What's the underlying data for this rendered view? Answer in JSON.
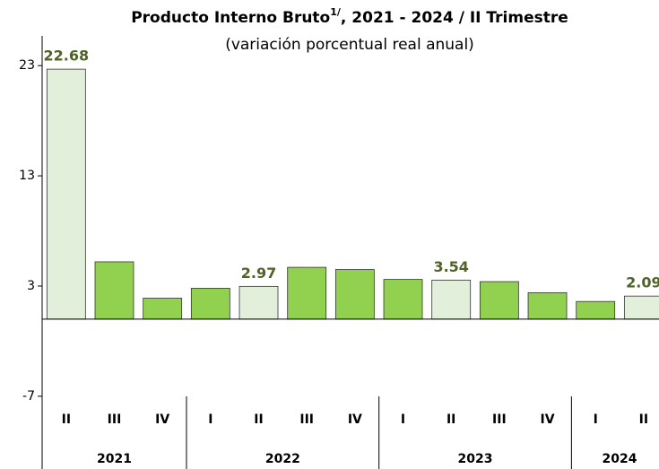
{
  "chart_data": {
    "type": "bar",
    "title": "Producto Interno Bruto",
    "title_note": "1/",
    "title_suffix": ", 2021 - 2024 / II Trimestre",
    "subtitle": "(variación porcentual real anual)",
    "groups": [
      {
        "name": "2021",
        "categories": [
          "II",
          "III",
          "IV"
        ]
      },
      {
        "name": "2022",
        "categories": [
          "I",
          "II",
          "III",
          "IV"
        ]
      },
      {
        "name": "2023",
        "categories": [
          "I",
          "II",
          "III",
          "IV"
        ]
      },
      {
        "name": "2024",
        "categories": [
          "I",
          "II"
        ]
      }
    ],
    "values": [
      22.68,
      5.2,
      1.9,
      2.8,
      2.97,
      4.7,
      4.5,
      3.6,
      3.54,
      3.4,
      2.4,
      1.6,
      2.09
    ],
    "value_labels": [
      "22.68",
      null,
      null,
      null,
      "2.97",
      null,
      null,
      null,
      "3.54",
      null,
      null,
      null,
      "2.09"
    ],
    "colors": [
      "#e2efda",
      "#92d050",
      "#92d050",
      "#92d050",
      "#e2efda",
      "#92d050",
      "#92d050",
      "#92d050",
      "#e2efda",
      "#92d050",
      "#92d050",
      "#92d050",
      "#e2efda"
    ],
    "ylim": [
      -13.6,
      25.7
    ],
    "yticks": [
      -7,
      3,
      13,
      23
    ]
  }
}
